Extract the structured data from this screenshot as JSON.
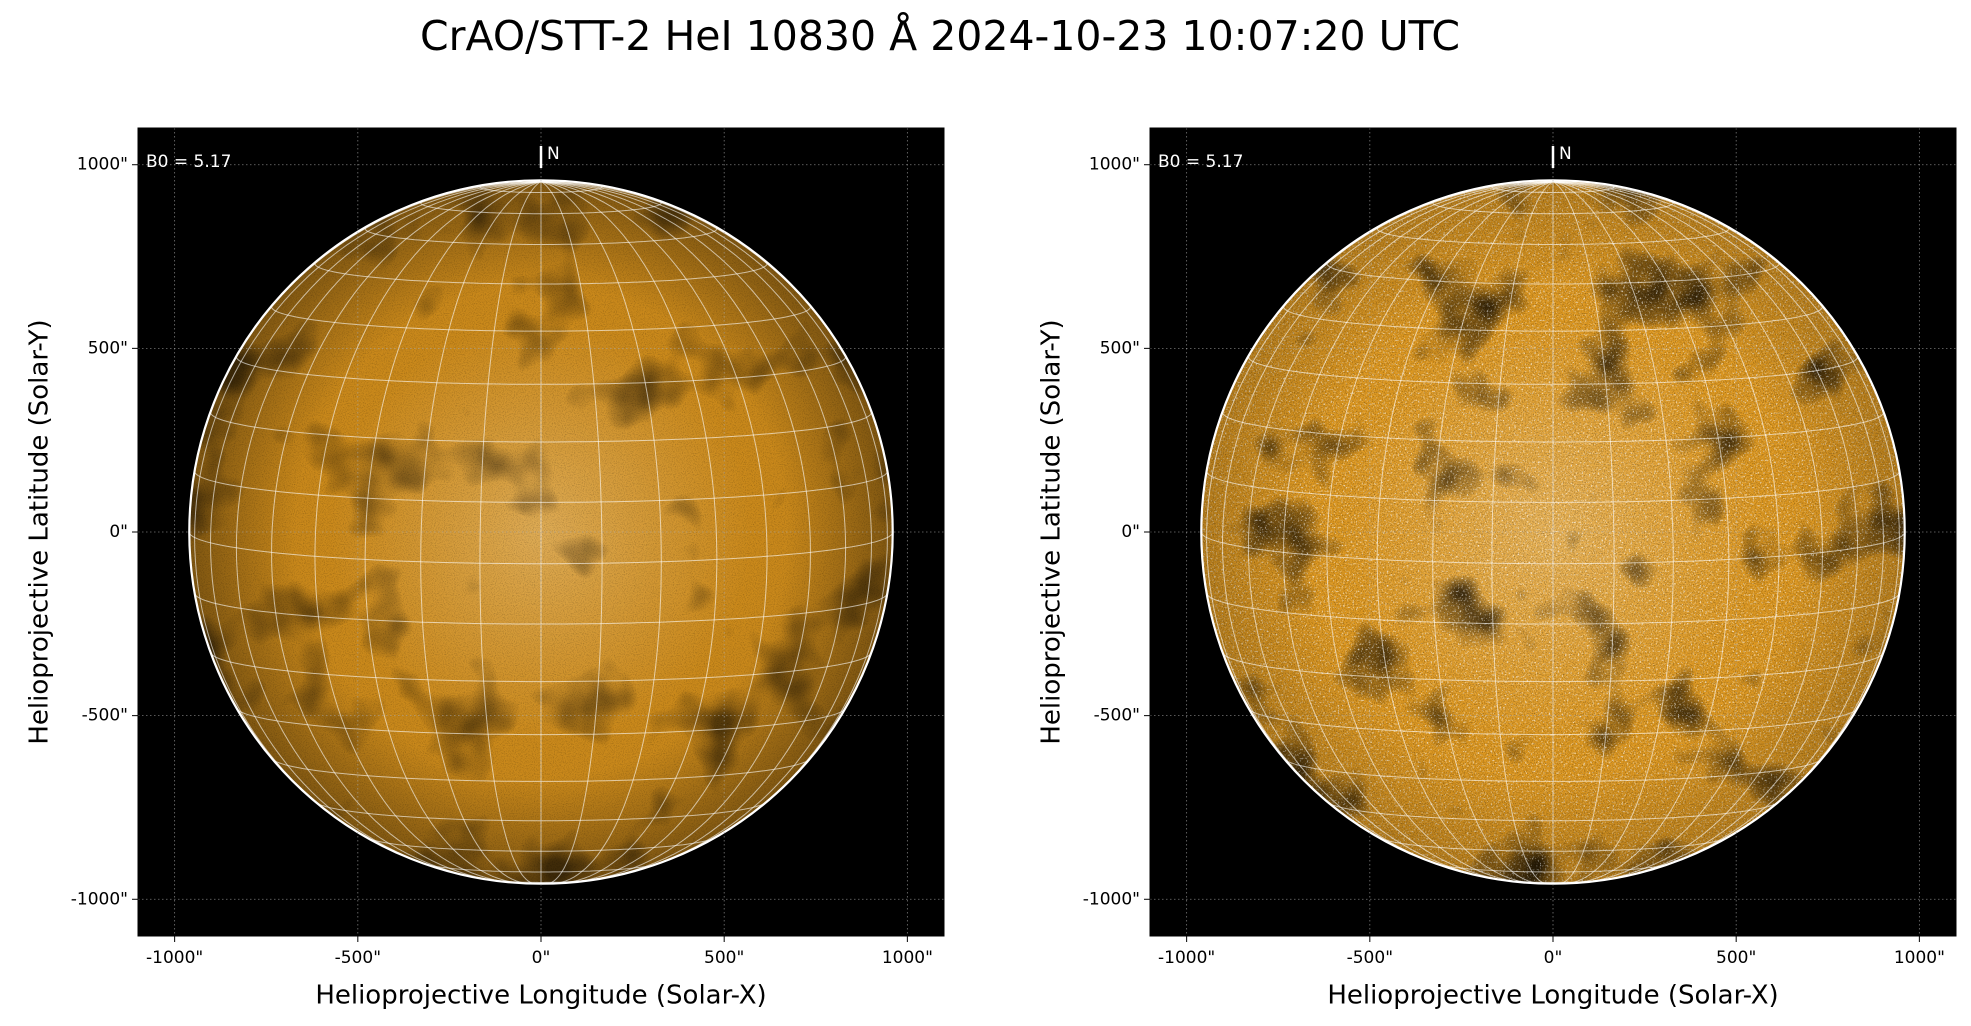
{
  "title": "CrAO/STT-2 HeI 10830 Å 2024-10-23 10:07:20 UTC",
  "chart_data": [
    {
      "type": "image",
      "xlabel": "Helioprojective Longitude (Solar-X)",
      "ylabel": "Helioprojective Latitude (Solar-Y)",
      "xlim": [
        -1100,
        1100
      ],
      "ylim": [
        -1100,
        1100
      ],
      "xticks": [
        {
          "value": -1000,
          "label": "-1000\""
        },
        {
          "value": -500,
          "label": "-500\""
        },
        {
          "value": 0,
          "label": "0\""
        },
        {
          "value": 500,
          "label": "500\""
        },
        {
          "value": 1000,
          "label": "1000\""
        }
      ],
      "yticks": [
        {
          "value": -1000,
          "label": "-1000\""
        },
        {
          "value": -500,
          "label": "-500\""
        },
        {
          "value": 0,
          "label": "0\""
        },
        {
          "value": 500,
          "label": "500\""
        },
        {
          "value": 1000,
          "label": "1000\""
        }
      ],
      "grid": true,
      "b0": {
        "value": 5.17,
        "label": "B0 = 5.17"
      },
      "north_label": "N",
      "disk_radius": 960,
      "disk_color": "#d38f1c"
    },
    {
      "type": "image",
      "xlabel": "Helioprojective Longitude (Solar-X)",
      "ylabel": "Helioprojective Latitude (Solar-Y)",
      "xlim": [
        -1100,
        1100
      ],
      "ylim": [
        -1100,
        1100
      ],
      "xticks": [
        {
          "value": -1000,
          "label": "-1000\""
        },
        {
          "value": -500,
          "label": "-500\""
        },
        {
          "value": 0,
          "label": "0\""
        },
        {
          "value": 500,
          "label": "500\""
        },
        {
          "value": 1000,
          "label": "1000\""
        }
      ],
      "yticks": [
        {
          "value": -1000,
          "label": "-1000\""
        },
        {
          "value": -500,
          "label": "-500\""
        },
        {
          "value": 0,
          "label": "0\""
        },
        {
          "value": 500,
          "label": "500\""
        },
        {
          "value": 1000,
          "label": "1000\""
        }
      ],
      "grid": true,
      "b0": {
        "value": 5.17,
        "label": "B0 = 5.17"
      },
      "north_label": "N",
      "disk_radius": 960,
      "disk_color": "#e39c22"
    }
  ]
}
